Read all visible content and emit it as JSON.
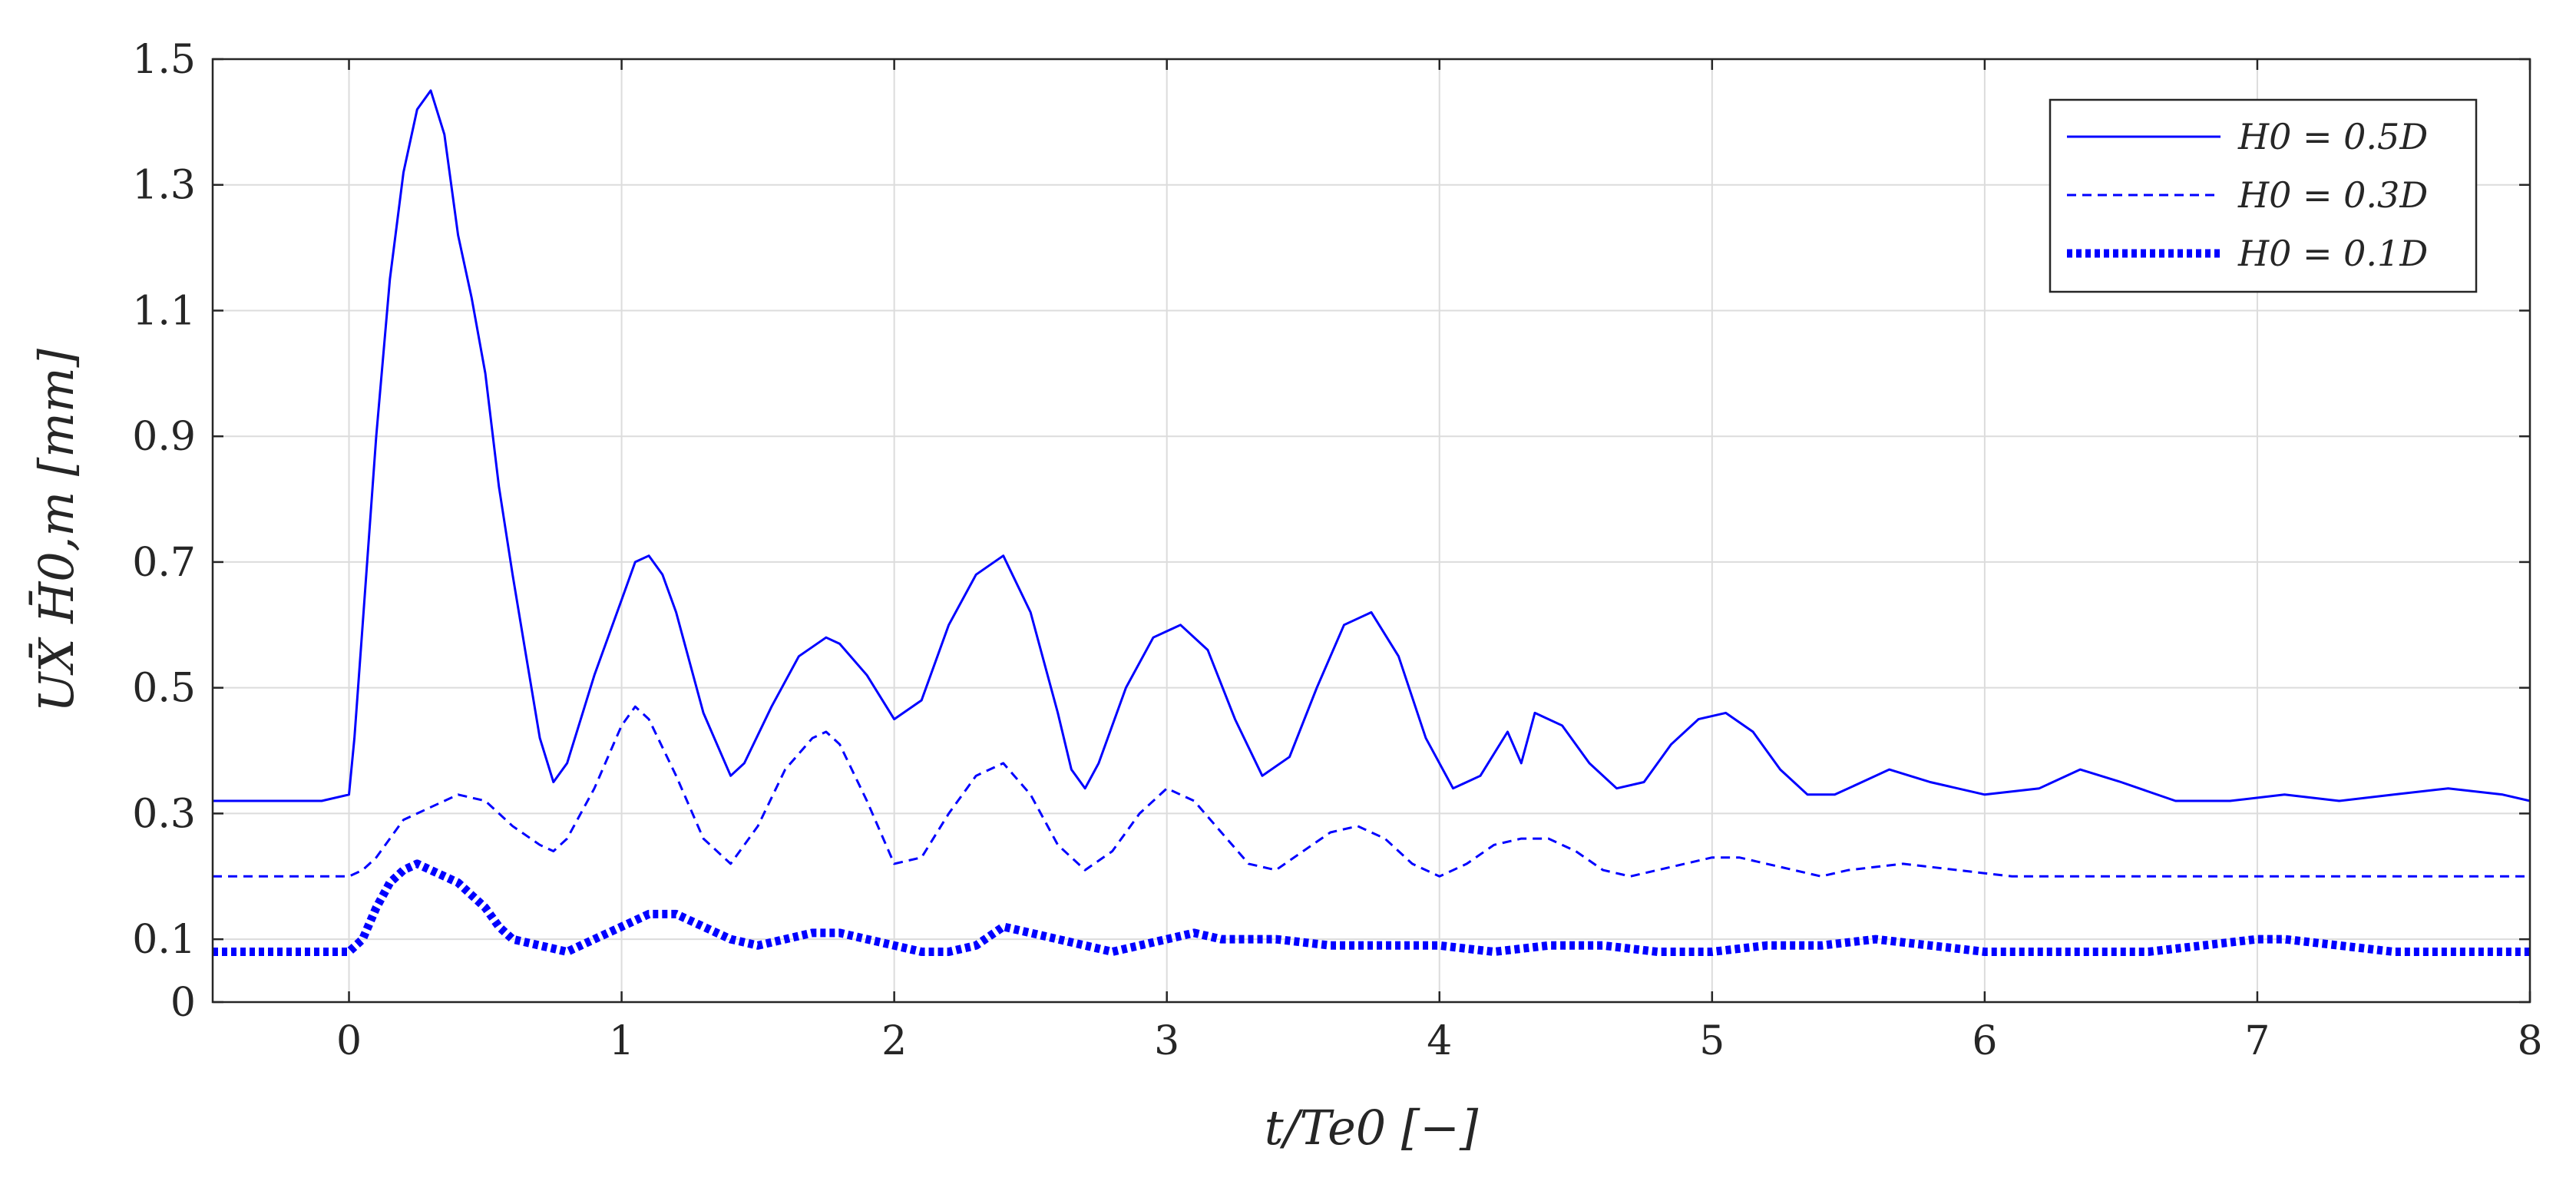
{
  "chart_data": {
    "type": "line",
    "xlabel": "t/Te0 [−]",
    "ylabel": "UX̄ H̄0,m [mm]",
    "xlim": [
      -0.5,
      8
    ],
    "ylim": [
      0,
      1.5
    ],
    "xticks": [
      0,
      1,
      2,
      3,
      4,
      5,
      6,
      7,
      8
    ],
    "xtick_labels": [
      "0",
      "1",
      "2",
      "3",
      "4",
      "5",
      "6",
      "7",
      "8"
    ],
    "yticks": [
      0,
      0.1,
      0.3,
      0.5,
      0.7,
      0.9,
      1.1,
      1.3,
      1.5
    ],
    "ytick_labels": [
      "0",
      "0.1",
      "0.3",
      "0.5",
      "0.7",
      "0.9",
      "1.1",
      "1.3",
      "1.5"
    ],
    "grid": true,
    "legend_position": "top-right",
    "color": "#0000ff",
    "series": [
      {
        "name": "H0 = 0.5D",
        "style": "solid",
        "x": [
          -0.5,
          -0.1,
          0.0,
          0.02,
          0.05,
          0.1,
          0.15,
          0.2,
          0.25,
          0.3,
          0.35,
          0.4,
          0.45,
          0.5,
          0.55,
          0.6,
          0.65,
          0.7,
          0.75,
          0.8,
          0.9,
          1.0,
          1.05,
          1.1,
          1.15,
          1.2,
          1.3,
          1.4,
          1.45,
          1.55,
          1.65,
          1.75,
          1.8,
          1.9,
          2.0,
          2.1,
          2.2,
          2.3,
          2.4,
          2.5,
          2.6,
          2.65,
          2.7,
          2.75,
          2.85,
          2.95,
          3.05,
          3.15,
          3.25,
          3.35,
          3.45,
          3.55,
          3.65,
          3.75,
          3.85,
          3.95,
          4.05,
          4.15,
          4.25,
          4.3,
          4.35,
          4.45,
          4.55,
          4.65,
          4.75,
          4.85,
          4.95,
          5.05,
          5.15,
          5.25,
          5.35,
          5.45,
          5.55,
          5.65,
          5.8,
          6.0,
          6.2,
          6.35,
          6.5,
          6.7,
          6.9,
          7.1,
          7.3,
          7.5,
          7.7,
          7.9,
          8.0
        ],
        "y": [
          0.32,
          0.32,
          0.33,
          0.42,
          0.6,
          0.9,
          1.15,
          1.32,
          1.42,
          1.45,
          1.38,
          1.22,
          1.12,
          1.0,
          0.82,
          0.68,
          0.55,
          0.42,
          0.35,
          0.38,
          0.52,
          0.64,
          0.7,
          0.71,
          0.68,
          0.62,
          0.46,
          0.36,
          0.38,
          0.47,
          0.55,
          0.58,
          0.57,
          0.52,
          0.45,
          0.48,
          0.6,
          0.68,
          0.71,
          0.62,
          0.46,
          0.37,
          0.34,
          0.38,
          0.5,
          0.58,
          0.6,
          0.56,
          0.45,
          0.36,
          0.39,
          0.5,
          0.6,
          0.62,
          0.55,
          0.42,
          0.34,
          0.36,
          0.43,
          0.38,
          0.46,
          0.44,
          0.38,
          0.34,
          0.35,
          0.41,
          0.45,
          0.46,
          0.43,
          0.37,
          0.33,
          0.33,
          0.35,
          0.37,
          0.35,
          0.33,
          0.34,
          0.37,
          0.35,
          0.32,
          0.32,
          0.33,
          0.32,
          0.33,
          0.34,
          0.33,
          0.32
        ]
      },
      {
        "name": "H0 = 0.3D",
        "style": "dashed",
        "x": [
          -0.5,
          0.0,
          0.05,
          0.1,
          0.15,
          0.2,
          0.3,
          0.4,
          0.5,
          0.6,
          0.7,
          0.75,
          0.8,
          0.9,
          1.0,
          1.05,
          1.1,
          1.2,
          1.3,
          1.4,
          1.5,
          1.6,
          1.7,
          1.75,
          1.8,
          1.9,
          2.0,
          2.1,
          2.2,
          2.3,
          2.4,
          2.5,
          2.6,
          2.7,
          2.8,
          2.9,
          3.0,
          3.1,
          3.2,
          3.3,
          3.4,
          3.5,
          3.6,
          3.7,
          3.8,
          3.9,
          4.0,
          4.1,
          4.2,
          4.3,
          4.4,
          4.5,
          4.6,
          4.7,
          4.8,
          4.9,
          5.0,
          5.1,
          5.2,
          5.3,
          5.4,
          5.5,
          5.7,
          5.9,
          6.1,
          6.4,
          6.7,
          7.0,
          7.3,
          7.6,
          8.0
        ],
        "y": [
          0.2,
          0.2,
          0.21,
          0.23,
          0.26,
          0.29,
          0.31,
          0.33,
          0.32,
          0.28,
          0.25,
          0.24,
          0.26,
          0.34,
          0.44,
          0.47,
          0.45,
          0.36,
          0.26,
          0.22,
          0.28,
          0.37,
          0.42,
          0.43,
          0.41,
          0.32,
          0.22,
          0.23,
          0.3,
          0.36,
          0.38,
          0.33,
          0.25,
          0.21,
          0.24,
          0.3,
          0.34,
          0.32,
          0.27,
          0.22,
          0.21,
          0.24,
          0.27,
          0.28,
          0.26,
          0.22,
          0.2,
          0.22,
          0.25,
          0.26,
          0.26,
          0.24,
          0.21,
          0.2,
          0.21,
          0.22,
          0.23,
          0.23,
          0.22,
          0.21,
          0.2,
          0.21,
          0.22,
          0.21,
          0.2,
          0.2,
          0.2,
          0.2,
          0.2,
          0.2,
          0.2
        ]
      },
      {
        "name": "H0 = 0.1D",
        "style": "dotted",
        "x": [
          -0.5,
          0.0,
          0.05,
          0.1,
          0.15,
          0.2,
          0.25,
          0.3,
          0.35,
          0.4,
          0.45,
          0.5,
          0.55,
          0.6,
          0.7,
          0.8,
          0.9,
          1.0,
          1.1,
          1.2,
          1.3,
          1.4,
          1.5,
          1.6,
          1.7,
          1.8,
          1.9,
          2.0,
          2.1,
          2.2,
          2.3,
          2.4,
          2.5,
          2.6,
          2.7,
          2.8,
          2.9,
          3.0,
          3.1,
          3.2,
          3.4,
          3.6,
          3.8,
          4.0,
          4.2,
          4.4,
          4.6,
          4.8,
          5.0,
          5.2,
          5.4,
          5.6,
          5.8,
          6.0,
          6.3,
          6.6,
          6.8,
          7.0,
          7.1,
          7.3,
          7.5,
          7.8,
          8.0
        ],
        "y": [
          0.08,
          0.08,
          0.1,
          0.15,
          0.19,
          0.21,
          0.22,
          0.21,
          0.2,
          0.19,
          0.17,
          0.15,
          0.12,
          0.1,
          0.09,
          0.08,
          0.1,
          0.12,
          0.14,
          0.14,
          0.12,
          0.1,
          0.09,
          0.1,
          0.11,
          0.11,
          0.1,
          0.09,
          0.08,
          0.08,
          0.09,
          0.12,
          0.11,
          0.1,
          0.09,
          0.08,
          0.09,
          0.1,
          0.11,
          0.1,
          0.1,
          0.09,
          0.09,
          0.09,
          0.08,
          0.09,
          0.09,
          0.08,
          0.08,
          0.09,
          0.09,
          0.1,
          0.09,
          0.08,
          0.08,
          0.08,
          0.09,
          0.1,
          0.1,
          0.09,
          0.08,
          0.08,
          0.08
        ]
      }
    ]
  }
}
